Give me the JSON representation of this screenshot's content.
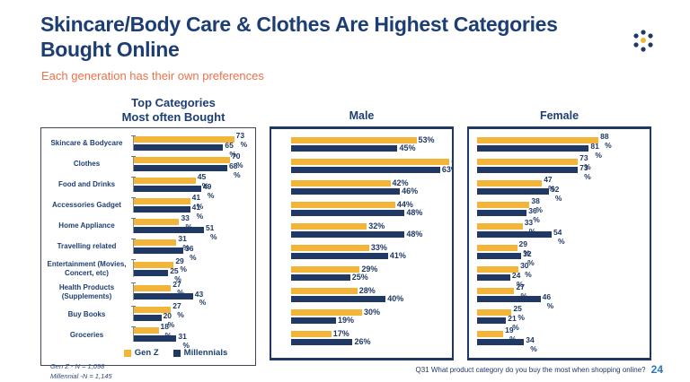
{
  "slide": {
    "title": "Skincare/Body Care & Clothes Are Highest Categories Bought Online",
    "subtitle": "Each generation has their own preferences",
    "footer_question": "Q31 What product category do you buy the most when shopping online?",
    "page_number": "24",
    "footnotes": [
      "Gen Z - N = 1,098",
      "Millennial -N = 1,145"
    ]
  },
  "legend": {
    "items": [
      {
        "label": "Gen Z",
        "color": "#F2B53A"
      },
      {
        "label": "Millennials",
        "color": "#1F3864"
      }
    ]
  },
  "colors": {
    "gen_z": "#F2B53A",
    "millennials": "#1F3864",
    "title": "#1D3E73",
    "subtitle": "#ED7149",
    "page_number": "#2E75B6",
    "panel_border": "#1F3864"
  },
  "logo": {
    "icon": "dots-logo",
    "center_color": "#F2B53A",
    "outer_color": "#1F3864"
  },
  "chart_data": [
    {
      "type": "bar",
      "orientation": "horizontal",
      "title": "Top Categories\nMost often Bought",
      "unit": "%",
      "legend_position": "bottom",
      "categories": [
        "Skincare & Bodycare",
        "Clothes",
        "Food and Drinks",
        "Accessories Gadget",
        "Home Appliance",
        "Travelling related",
        "Entertainment (Movies, Concert, etc)",
        "Health Products (Supplements)",
        "Buy Books",
        "Groceries"
      ],
      "series": [
        {
          "name": "Gen Z",
          "values": [
            73,
            70,
            45,
            41,
            33,
            31,
            29,
            27,
            27,
            18
          ]
        },
        {
          "name": "Millennials",
          "values": [
            65,
            68,
            49,
            41,
            51,
            36,
            25,
            43,
            20,
            31
          ]
        }
      ]
    },
    {
      "type": "bar",
      "orientation": "horizontal",
      "title": "Male",
      "unit": "%",
      "categories": [
        "Skincare & Bodycare",
        "Clothes",
        "Food and Drinks",
        "Accessories Gadget",
        "Home Appliance",
        "Travelling related",
        "Entertainment (Movies, Concert, etc)",
        "Health Products (Supplements)",
        "Buy Books",
        "Groceries"
      ],
      "series": [
        {
          "name": "Gen Z",
          "values": [
            53,
            67,
            42,
            44,
            32,
            33,
            29,
            28,
            30,
            17
          ]
        },
        {
          "name": "Millennials",
          "values": [
            45,
            63,
            46,
            48,
            48,
            41,
            25,
            40,
            19,
            26
          ]
        }
      ]
    },
    {
      "type": "bar",
      "orientation": "horizontal",
      "title": "Female",
      "unit": "%",
      "categories": [
        "Skincare & Bodycare",
        "Clothes",
        "Food and Drinks",
        "Accessories Gadget",
        "Home Appliance",
        "Travelling related",
        "Entertainment (Movies, Concert, etc)",
        "Health Products (Supplements)",
        "Buy Books",
        "Groceries"
      ],
      "series": [
        {
          "name": "Gen Z",
          "values": [
            88,
            73,
            47,
            38,
            33,
            29,
            30,
            27,
            25,
            19
          ]
        },
        {
          "name": "Millennials",
          "values": [
            81,
            73,
            52,
            36,
            54,
            32,
            24,
            46,
            21,
            34
          ]
        }
      ]
    }
  ]
}
